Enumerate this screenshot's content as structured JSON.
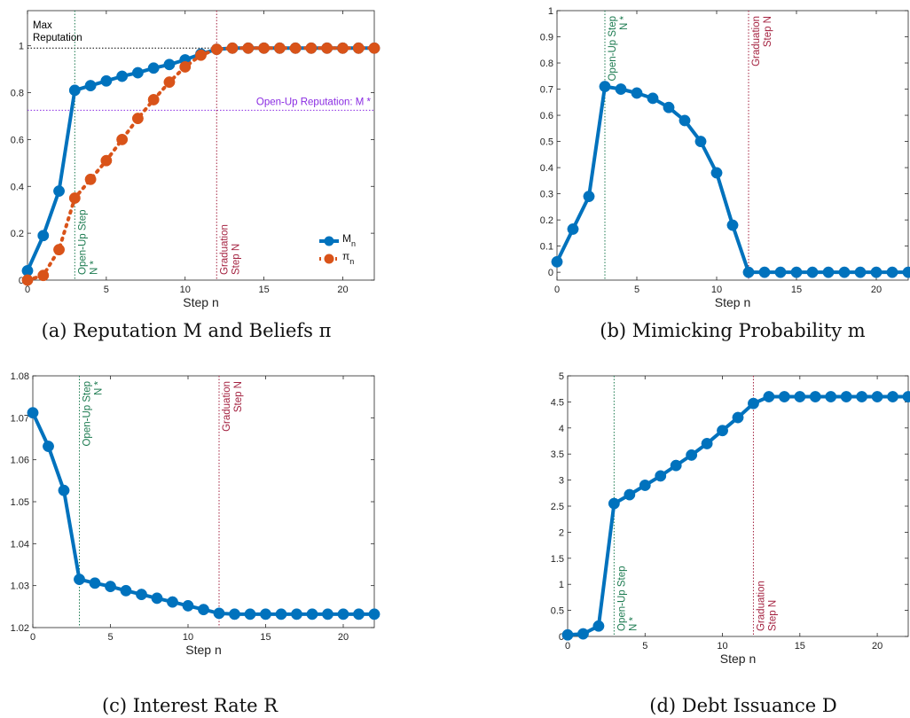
{
  "colors": {
    "series_blue": "#0072BD",
    "series_orange": "#D95319",
    "open_up_line": "#1b7a4f",
    "graduation_line": "#a3213f",
    "open_up_reputation_line": "#8a2be2",
    "max_line": "#000000"
  },
  "chart_data": [
    {
      "type": "line",
      "caption": "(a) Reputation M and Beliefs π",
      "xlabel": "Step n",
      "ylabel": "",
      "xlim": [
        0,
        22
      ],
      "ylim": [
        0,
        1.15
      ],
      "xticks": [
        "0",
        "5",
        "10",
        "15",
        "20"
      ],
      "yticks": [
        "0",
        "0.2",
        "0.4",
        "0.6",
        "0.8",
        "1"
      ],
      "x": [
        0,
        1,
        2,
        3,
        4,
        5,
        6,
        7,
        8,
        9,
        10,
        11,
        12,
        13,
        14,
        15,
        16,
        17,
        18,
        19,
        20,
        21,
        22
      ],
      "series": [
        {
          "name": "M_n",
          "color": "#0072BD",
          "style": "solid",
          "values": [
            0.04,
            0.19,
            0.38,
            0.81,
            0.83,
            0.85,
            0.87,
            0.885,
            0.905,
            0.92,
            0.94,
            0.965,
            0.985,
            0.99,
            0.99,
            0.99,
            0.99,
            0.99,
            0.99,
            0.99,
            0.99,
            0.99,
            0.99
          ]
        },
        {
          "name": "π_n",
          "color": "#D95319",
          "style": "dotted",
          "values": [
            0.0,
            0.02,
            0.13,
            0.35,
            0.43,
            0.51,
            0.6,
            0.69,
            0.77,
            0.845,
            0.91,
            0.96,
            0.985,
            0.99,
            0.99,
            0.99,
            0.99,
            0.99,
            0.99,
            0.99,
            0.99,
            0.99,
            0.99
          ]
        }
      ],
      "annotations": {
        "max_label": "Max Reputation",
        "max_value": 0.99,
        "open_up_reputation_label": "Open-Up Reputation: M *",
        "open_up_reputation_value": 0.725,
        "open_up_step_x": 3,
        "open_up_label": "Open-Up Step N *",
        "graduation_step_x": 12,
        "graduation_label": "Graduation Step N"
      },
      "legend": {
        "position": "bottom-right",
        "entries": [
          "M n",
          "π n"
        ]
      }
    },
    {
      "type": "line",
      "caption": "(b) Mimicking Probability m",
      "xlabel": "Step n",
      "ylabel": "",
      "xlim": [
        0,
        22
      ],
      "ylim": [
        -0.03,
        1.0
      ],
      "xticks": [
        "0",
        "5",
        "10",
        "15",
        "20"
      ],
      "yticks": [
        "0",
        "0.1",
        "0.2",
        "0.3",
        "0.4",
        "0.5",
        "0.6",
        "0.7",
        "0.8",
        "0.9",
        "1"
      ],
      "x": [
        0,
        1,
        2,
        3,
        4,
        5,
        6,
        7,
        8,
        9,
        10,
        11,
        12,
        13,
        14,
        15,
        16,
        17,
        18,
        19,
        20,
        21,
        22
      ],
      "series": [
        {
          "name": "m",
          "color": "#0072BD",
          "style": "solid",
          "values": [
            0.04,
            0.165,
            0.29,
            0.71,
            0.7,
            0.685,
            0.665,
            0.63,
            0.58,
            0.5,
            0.38,
            0.18,
            0.0,
            0.0,
            0.0,
            0.0,
            0.0,
            0.0,
            0.0,
            0.0,
            0.0,
            0.0,
            0.0
          ]
        }
      ],
      "annotations": {
        "open_up_step_x": 3,
        "open_up_label": "Open-Up Step N *",
        "graduation_step_x": 12,
        "graduation_label": "Graduation Step N"
      }
    },
    {
      "type": "line",
      "caption": "(c) Interest Rate R",
      "xlabel": "Step n",
      "ylabel": "",
      "xlim": [
        0,
        22
      ],
      "ylim": [
        1.02,
        1.08
      ],
      "xticks": [
        "0",
        "5",
        "10",
        "15",
        "20"
      ],
      "yticks": [
        "1.02",
        "1.03",
        "1.04",
        "1.05",
        "1.06",
        "1.07",
        "1.08"
      ],
      "x": [
        0,
        1,
        2,
        3,
        4,
        5,
        6,
        7,
        8,
        9,
        10,
        11,
        12,
        13,
        14,
        15,
        16,
        17,
        18,
        19,
        20,
        21,
        22
      ],
      "series": [
        {
          "name": "R",
          "color": "#0072BD",
          "style": "solid",
          "values": [
            1.0712,
            1.0632,
            1.0527,
            1.0315,
            1.0306,
            1.0298,
            1.0288,
            1.0279,
            1.027,
            1.0261,
            1.0252,
            1.0243,
            1.0234,
            1.0232,
            1.0232,
            1.0232,
            1.0232,
            1.0232,
            1.0232,
            1.0232,
            1.0232,
            1.0232,
            1.0232
          ]
        }
      ],
      "annotations": {
        "open_up_step_x": 3,
        "open_up_label": "Open-Up Step N *",
        "graduation_step_x": 12,
        "graduation_label": "Graduation Step N"
      }
    },
    {
      "type": "line",
      "caption": "(d) Debt Issuance D",
      "xlabel": "Step n",
      "ylabel": "",
      "xlim": [
        0,
        22
      ],
      "ylim": [
        0,
        5
      ],
      "xticks": [
        "0",
        "5",
        "10",
        "15",
        "20"
      ],
      "yticks": [
        "0",
        "0.5",
        "1",
        "1.5",
        "2",
        "2.5",
        "3",
        "3.5",
        "4",
        "4.5",
        "5"
      ],
      "x": [
        0,
        1,
        2,
        3,
        4,
        5,
        6,
        7,
        8,
        9,
        10,
        11,
        12,
        13,
        14,
        15,
        16,
        17,
        18,
        19,
        20,
        21,
        22
      ],
      "series": [
        {
          "name": "D",
          "color": "#0072BD",
          "style": "solid",
          "values": [
            0.03,
            0.05,
            0.2,
            2.55,
            2.72,
            2.9,
            3.08,
            3.28,
            3.48,
            3.7,
            3.95,
            4.2,
            4.47,
            4.6,
            4.6,
            4.6,
            4.6,
            4.6,
            4.6,
            4.6,
            4.6,
            4.6,
            4.6
          ]
        }
      ],
      "annotations": {
        "open_up_step_x": 3,
        "open_up_label": "Open-Up Step N *",
        "graduation_step_x": 12,
        "graduation_label": "Graduation Step N"
      }
    }
  ]
}
